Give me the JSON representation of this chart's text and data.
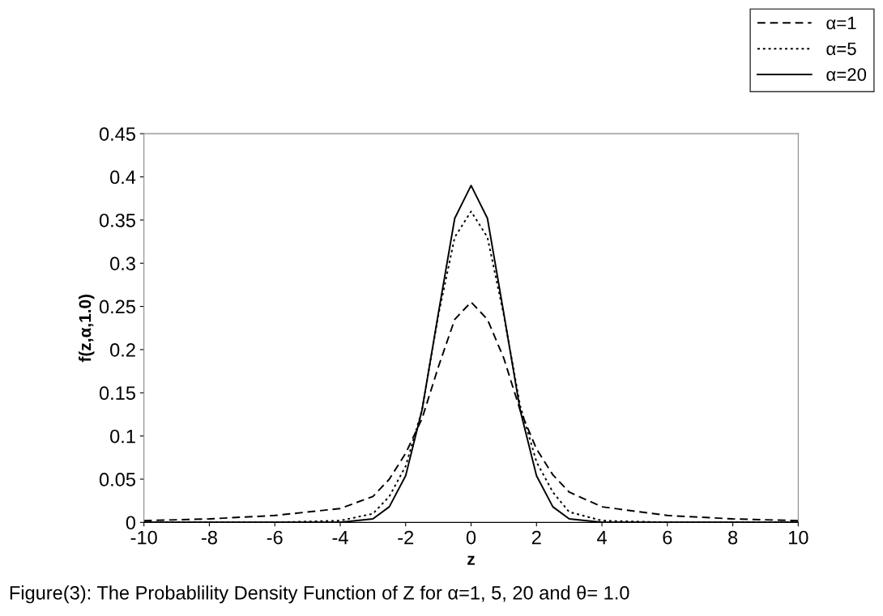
{
  "chart_data": {
    "type": "line",
    "xlabel": "z",
    "ylabel": "f(z,α,1.0)",
    "annotations": [
      "Figure(3): The Probablility Density Function of Z for α=1, 5, 20 and θ= 1.0"
    ],
    "xlim": [
      -10,
      10
    ],
    "xticks": [
      -10,
      -8,
      -6,
      -4,
      -2,
      0,
      2,
      4,
      6,
      8,
      10
    ],
    "ylim": [
      0,
      0.45
    ],
    "yticks": [
      0,
      0.05,
      0.1,
      0.15,
      0.2,
      0.25,
      0.3,
      0.35,
      0.4,
      0.45
    ],
    "grid": false,
    "legend": "top right",
    "series": [
      {
        "name": "α=1",
        "color": "#000000",
        "line_style": "dashed",
        "x": [
          -10,
          -8,
          -6,
          -4,
          -3,
          -2.5,
          -2,
          -1.5,
          -1,
          -0.5,
          0,
          0.5,
          1,
          1.5,
          2,
          2.5,
          3,
          4,
          6,
          8,
          10
        ],
        "values": [
          0.002,
          0.004,
          0.008,
          0.016,
          0.03,
          0.05,
          0.08,
          0.12,
          0.18,
          0.235,
          0.255,
          0.235,
          0.19,
          0.13,
          0.085,
          0.055,
          0.035,
          0.018,
          0.008,
          0.004,
          0.002
        ]
      },
      {
        "name": "α=5",
        "color": "#000000",
        "line_style": "dotted",
        "x": [
          -10,
          -6,
          -4,
          -3,
          -2.5,
          -2,
          -1.5,
          -1,
          -0.5,
          0,
          0.5,
          1,
          1.5,
          2,
          2.5,
          3,
          4,
          6,
          10
        ],
        "values": [
          0,
          0,
          0.002,
          0.01,
          0.03,
          0.065,
          0.13,
          0.24,
          0.33,
          0.36,
          0.33,
          0.24,
          0.135,
          0.07,
          0.035,
          0.012,
          0.002,
          0,
          0
        ]
      },
      {
        "name": "α=20",
        "color": "#000000",
        "line_style": "solid",
        "x": [
          -10,
          -6,
          -4,
          -3,
          -2.5,
          -2,
          -1.5,
          -1,
          -0.5,
          0,
          0.5,
          1,
          1.5,
          2,
          2.5,
          3,
          4,
          6,
          10
        ],
        "values": [
          0,
          0,
          0,
          0.004,
          0.018,
          0.054,
          0.13,
          0.242,
          0.352,
          0.39,
          0.352,
          0.242,
          0.13,
          0.054,
          0.018,
          0.004,
          0,
          0,
          0
        ]
      }
    ]
  }
}
